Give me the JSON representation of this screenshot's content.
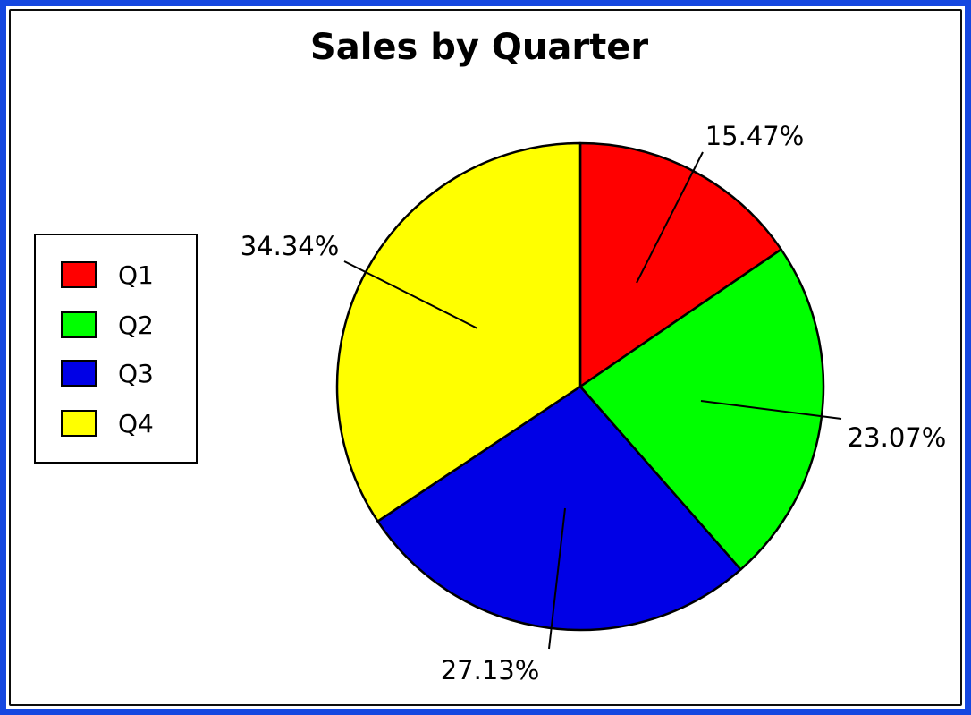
{
  "chart_data": {
    "type": "pie",
    "title": "Sales by Quarter",
    "categories": [
      "Q1",
      "Q2",
      "Q3",
      "Q4"
    ],
    "values": [
      15.47,
      23.07,
      27.13,
      34.34
    ],
    "labels": [
      "15.47%",
      "23.07%",
      "27.13%",
      "34.34%"
    ],
    "colors": [
      "#ff0000",
      "#00ff00",
      "#0000e6",
      "#ffff00"
    ],
    "legend_placement": "left",
    "start_angle_deg": 90,
    "direction": "clockwise"
  }
}
